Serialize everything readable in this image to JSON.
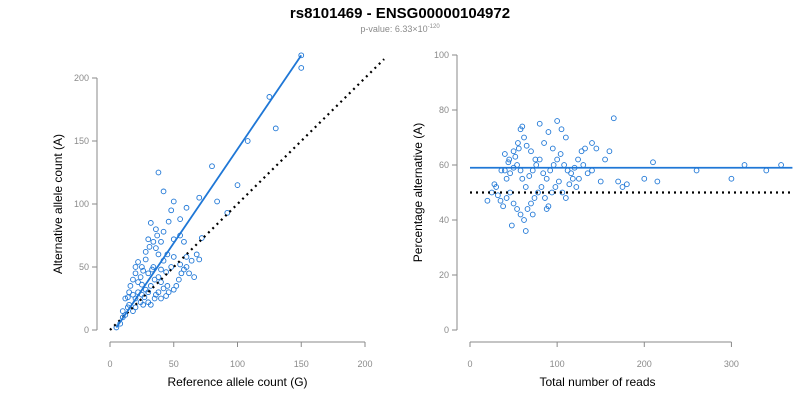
{
  "header": {
    "title": "rs8101469 - ENSG00000104972",
    "pvalue_prefix": "p-value: 6.33×10",
    "pvalue_exponent": "-120"
  },
  "colors": {
    "points": "#1f77d6",
    "fit": "#1f77d6",
    "reference": "#000000",
    "axis": "#8a8a8a"
  },
  "chart_data": [
    {
      "type": "scatter",
      "xlabel": "Reference allele count (G)",
      "ylabel": "Alternative allele count (A)",
      "xlim": [
        0,
        200
      ],
      "ylim": [
        0,
        200
      ],
      "xticks": [
        0,
        50,
        100,
        150,
        200
      ],
      "yticks": [
        0,
        50,
        100,
        150,
        200
      ],
      "fit_line": {
        "x": [
          5,
          150
        ],
        "y": [
          2,
          218
        ]
      },
      "reference_line": {
        "x": [
          0,
          215
        ],
        "y": [
          0,
          215
        ]
      },
      "points": [
        [
          150,
          218
        ],
        [
          150,
          208
        ],
        [
          125,
          185
        ],
        [
          130,
          160
        ],
        [
          108,
          150
        ],
        [
          80,
          130
        ],
        [
          100,
          115
        ],
        [
          38,
          125
        ],
        [
          42,
          110
        ],
        [
          84,
          102
        ],
        [
          70,
          105
        ],
        [
          60,
          97
        ],
        [
          50,
          102
        ],
        [
          48,
          95
        ],
        [
          55,
          88
        ],
        [
          92,
          93
        ],
        [
          46,
          86
        ],
        [
          32,
          85
        ],
        [
          36,
          80
        ],
        [
          42,
          78
        ],
        [
          30,
          72
        ],
        [
          40,
          70
        ],
        [
          50,
          72
        ],
        [
          58,
          70
        ],
        [
          55,
          75
        ],
        [
          72,
          73
        ],
        [
          36,
          65
        ],
        [
          38,
          60
        ],
        [
          42,
          55
        ],
        [
          45,
          60
        ],
        [
          50,
          58
        ],
        [
          55,
          52
        ],
        [
          48,
          50
        ],
        [
          60,
          58
        ],
        [
          22,
          54
        ],
        [
          28,
          56
        ],
        [
          25,
          50
        ],
        [
          30,
          45
        ],
        [
          20,
          45
        ],
        [
          18,
          40
        ],
        [
          22,
          38
        ],
        [
          25,
          36
        ],
        [
          28,
          32
        ],
        [
          30,
          30
        ],
        [
          32,
          35
        ],
        [
          35,
          40
        ],
        [
          38,
          42
        ],
        [
          40,
          38
        ],
        [
          42,
          33
        ],
        [
          45,
          35
        ],
        [
          15,
          30
        ],
        [
          18,
          28
        ],
        [
          12,
          25
        ],
        [
          20,
          25
        ],
        [
          24,
          22
        ],
        [
          26,
          20
        ],
        [
          15,
          20
        ],
        [
          10,
          15
        ],
        [
          12,
          12
        ],
        [
          10,
          10
        ],
        [
          8,
          5
        ],
        [
          5,
          2
        ],
        [
          14,
          18
        ],
        [
          18,
          15
        ],
        [
          20,
          18
        ],
        [
          22,
          30
        ],
        [
          25,
          28
        ],
        [
          27,
          26
        ],
        [
          30,
          22
        ],
        [
          32,
          20
        ],
        [
          35,
          25
        ],
        [
          36,
          28
        ],
        [
          38,
          30
        ],
        [
          40,
          25
        ],
        [
          44,
          27
        ],
        [
          46,
          30
        ],
        [
          50,
          32
        ],
        [
          52,
          35
        ],
        [
          54,
          40
        ],
        [
          56,
          45
        ],
        [
          58,
          48
        ],
        [
          60,
          50
        ],
        [
          62,
          45
        ],
        [
          64,
          55
        ],
        [
          66,
          42
        ],
        [
          68,
          60
        ],
        [
          70,
          56
        ],
        [
          34,
          50
        ],
        [
          40,
          48
        ],
        [
          44,
          46
        ],
        [
          28,
          62
        ],
        [
          31,
          66
        ],
        [
          34,
          70
        ],
        [
          37,
          75
        ],
        [
          26,
          47
        ],
        [
          20,
          50
        ],
        [
          16,
          35
        ],
        [
          14,
          26
        ],
        [
          24,
          42
        ],
        [
          33,
          48
        ]
      ]
    },
    {
      "type": "scatter",
      "xlabel": "Total number of reads",
      "ylabel": "Percentage alternative (A)",
      "xlim": [
        0,
        350
      ],
      "ylim": [
        0,
        100
      ],
      "xticks": [
        0,
        100,
        200,
        300
      ],
      "yticks": [
        0,
        20,
        40,
        60,
        80,
        100
      ],
      "fit_line": {
        "x": [
          0,
          370
        ],
        "y": [
          59,
          59
        ]
      },
      "reference_line": {
        "x": [
          0,
          370
        ],
        "y": [
          50,
          50
        ]
      },
      "points": [
        [
          100,
          76
        ],
        [
          105,
          73
        ],
        [
          110,
          70
        ],
        [
          90,
          72
        ],
        [
          80,
          75
        ],
        [
          85,
          68
        ],
        [
          95,
          66
        ],
        [
          60,
          74
        ],
        [
          62,
          70
        ],
        [
          65,
          67
        ],
        [
          70,
          65
        ],
        [
          75,
          62
        ],
        [
          40,
          64
        ],
        [
          45,
          62
        ],
        [
          50,
          65
        ],
        [
          55,
          68
        ],
        [
          58,
          73
        ],
        [
          40,
          58
        ],
        [
          42,
          55
        ],
        [
          46,
          57
        ],
        [
          50,
          59
        ],
        [
          54,
          60
        ],
        [
          58,
          58
        ],
        [
          60,
          55
        ],
        [
          64,
          52
        ],
        [
          68,
          56
        ],
        [
          72,
          58
        ],
        [
          76,
          60
        ],
        [
          80,
          62
        ],
        [
          84,
          57
        ],
        [
          88,
          55
        ],
        [
          92,
          58
        ],
        [
          96,
          60
        ],
        [
          100,
          62
        ],
        [
          104,
          64
        ],
        [
          108,
          60
        ],
        [
          112,
          58
        ],
        [
          116,
          57
        ],
        [
          120,
          59
        ],
        [
          124,
          62
        ],
        [
          128,
          65
        ],
        [
          132,
          66
        ],
        [
          30,
          52
        ],
        [
          32,
          49
        ],
        [
          35,
          47
        ],
        [
          38,
          45
        ],
        [
          42,
          48
        ],
        [
          46,
          50
        ],
        [
          50,
          46
        ],
        [
          54,
          44
        ],
        [
          58,
          42
        ],
        [
          62,
          40
        ],
        [
          66,
          44
        ],
        [
          70,
          46
        ],
        [
          74,
          48
        ],
        [
          78,
          50
        ],
        [
          82,
          52
        ],
        [
          86,
          48
        ],
        [
          90,
          45
        ],
        [
          94,
          50
        ],
        [
          98,
          52
        ],
        [
          102,
          54
        ],
        [
          106,
          50
        ],
        [
          110,
          48
        ],
        [
          114,
          53
        ],
        [
          118,
          55
        ],
        [
          122,
          52
        ],
        [
          20,
          47
        ],
        [
          25,
          50
        ],
        [
          28,
          53
        ],
        [
          36,
          58
        ],
        [
          44,
          61
        ],
        [
          52,
          63
        ],
        [
          56,
          66
        ],
        [
          140,
          58
        ],
        [
          150,
          54
        ],
        [
          155,
          62
        ],
        [
          160,
          65
        ],
        [
          165,
          77
        ],
        [
          170,
          54
        ],
        [
          175,
          52
        ],
        [
          180,
          53
        ],
        [
          200,
          55
        ],
        [
          210,
          61
        ],
        [
          215,
          54
        ],
        [
          260,
          58
        ],
        [
          300,
          55
        ],
        [
          315,
          60
        ],
        [
          340,
          58
        ],
        [
          357,
          60
        ],
        [
          48,
          38
        ],
        [
          64,
          36
        ],
        [
          72,
          42
        ],
        [
          88,
          44
        ],
        [
          140,
          68
        ],
        [
          145,
          66
        ],
        [
          130,
          60
        ],
        [
          125,
          55
        ],
        [
          135,
          57
        ]
      ]
    }
  ]
}
